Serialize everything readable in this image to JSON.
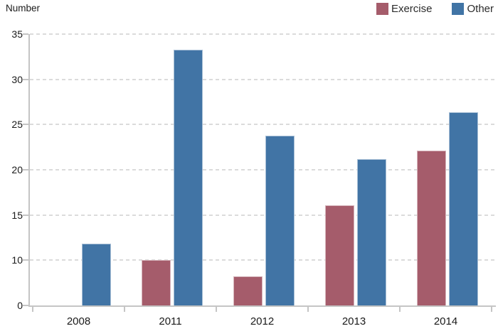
{
  "header": {
    "y_axis_title": "Number"
  },
  "legend": {
    "items": [
      {
        "label": "Exercise",
        "color": "#A55C6B"
      },
      {
        "label": "Other",
        "color": "#4174A5"
      }
    ]
  },
  "chart_data": {
    "type": "bar",
    "title": "",
    "ylabel": "Number",
    "xlabel": "",
    "categories": [
      "2008",
      "2011",
      "2012",
      "2013",
      "2014"
    ],
    "series": [
      {
        "name": "Exercise",
        "color": "#A55C6B",
        "values": [
          null,
          10,
          6.5,
          16.1,
          22.1
        ]
      },
      {
        "name": "Other",
        "color": "#4174A5",
        "values": [
          11.8,
          33.3,
          23.8,
          21.2,
          26.4
        ]
      }
    ],
    "y_axis": {
      "tick_labels_bottom_to_top": [
        "0",
        "10",
        "15",
        "20",
        "25",
        "30",
        "35"
      ],
      "gridlines": "dashed",
      "equal_tick_spacing_as_drawn": true
    },
    "legend_position": "top-right",
    "grid": "horizontal-dashed"
  }
}
